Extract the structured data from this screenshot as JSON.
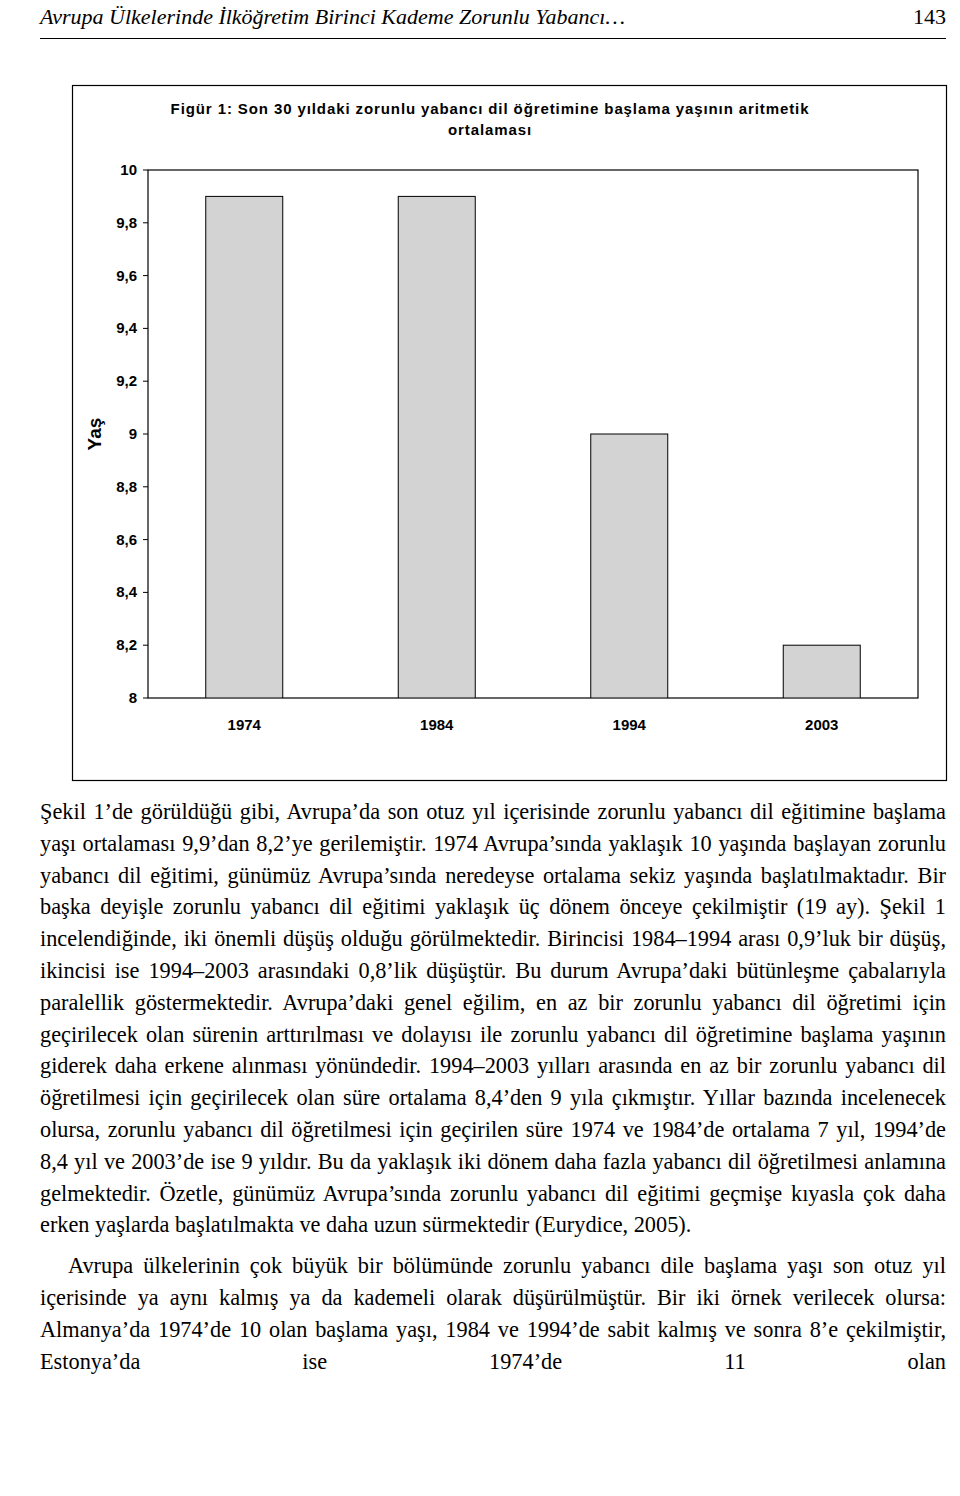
{
  "header": {
    "title": "Avrupa Ülkelerinde İlköğretim Birinci Kademe Zorunlu Yabancı…",
    "page": "143"
  },
  "chart_data": {
    "type": "bar",
    "title": "Figür 1: Son 30 yıldaki zorunlu yabancı dil öğretimine başlama yaşının aritmetik ortalaması",
    "y_label": "Yaş",
    "categories": [
      "1974",
      "1984",
      "1994",
      "2003"
    ],
    "values": [
      9.9,
      9.9,
      9.0,
      8.2
    ],
    "color": "#d3d3d3",
    "ylim": [
      8,
      10
    ],
    "yticks": [
      8,
      {
        "value": 8.2,
        "label": "8,2"
      },
      {
        "value": 8.4,
        "label": "8,4"
      },
      {
        "value": 8.6,
        "label": "8,6"
      },
      {
        "value": 8.8,
        "label": "8,8"
      },
      9,
      {
        "value": 9.2,
        "label": "9,2"
      },
      {
        "value": 9.4,
        "label": "9,4"
      },
      {
        "value": 9.6,
        "label": "9,6"
      },
      {
        "value": 9.8,
        "label": "9,8"
      },
      10
    ],
    "grid": false
  },
  "paragraphs": [
    "Şekil 1’de görüldüğü gibi, Avrupa’da son otuz yıl içerisinde zorunlu yabancı dil eğitimine başlama yaşı ortalaması 9,9’dan 8,2’ye gerilemiştir. 1974 Avrupa’sında yaklaşık 10 yaşında başlayan zorunlu yabancı dil eğitimi, günümüz Avrupa’sında neredeyse ortalama sekiz yaşında başlatılmaktadır. Bir başka deyişle zorunlu yabancı dil eğitimi yaklaşık üç dönem önceye çekilmiştir (19 ay). Şekil 1 incelendiğinde, iki önemli düşüş olduğu görülmektedir. Birincisi 1984–1994 arası 0,9’luk bir düşüş, ikincisi ise 1994–2003 arasındaki 0,8’lik düşüştür. Bu durum Avrupa’daki bütünleşme çabalarıyla paralellik göstermektedir. Avrupa’daki genel eğilim, en az bir zorunlu yabancı dil öğretimi için geçirilecek olan sürenin arttırılması ve dolayısı ile zorunlu yabancı dil öğretimine başlama yaşının giderek daha erkene alınması yönündedir. 1994–2003 yılları arasında en az bir zorunlu yabancı dil öğretilmesi için geçirilecek olan süre ortalama 8,4’den 9 yıla çıkmıştır. Yıllar bazında incelenecek olursa, zorunlu yabancı dil öğretilmesi için geçirilen süre 1974 ve 1984’de ortalama 7 yıl, 1994’de 8,4 yıl ve 2003’de ise 9 yıldır. Bu da yaklaşık iki dönem daha fazla yabancı dil öğretilmesi anlamına gelmektedir. Özetle, günümüz Avrupa’sında zorunlu yabancı dil eğitimi geçmişe kıyasla çok daha erken yaşlarda başlatılmakta ve daha uzun sürmektedir (Eurydice, 2005).",
    "Avrupa ülkelerinin çok büyük bir bölümünde zorunlu yabancı dile başlama yaşı son otuz yıl içerisinde ya aynı kalmış ya da kademeli olarak düşürülmüştür. Bir iki örnek verilecek olursa: Almanya’da 1974’de 10 olan başlama yaşı, 1984 ve 1994’de sabit kalmış ve sonra 8’e çekilmiştir, Estonya’da ise 1974’de 11 olan"
  ]
}
